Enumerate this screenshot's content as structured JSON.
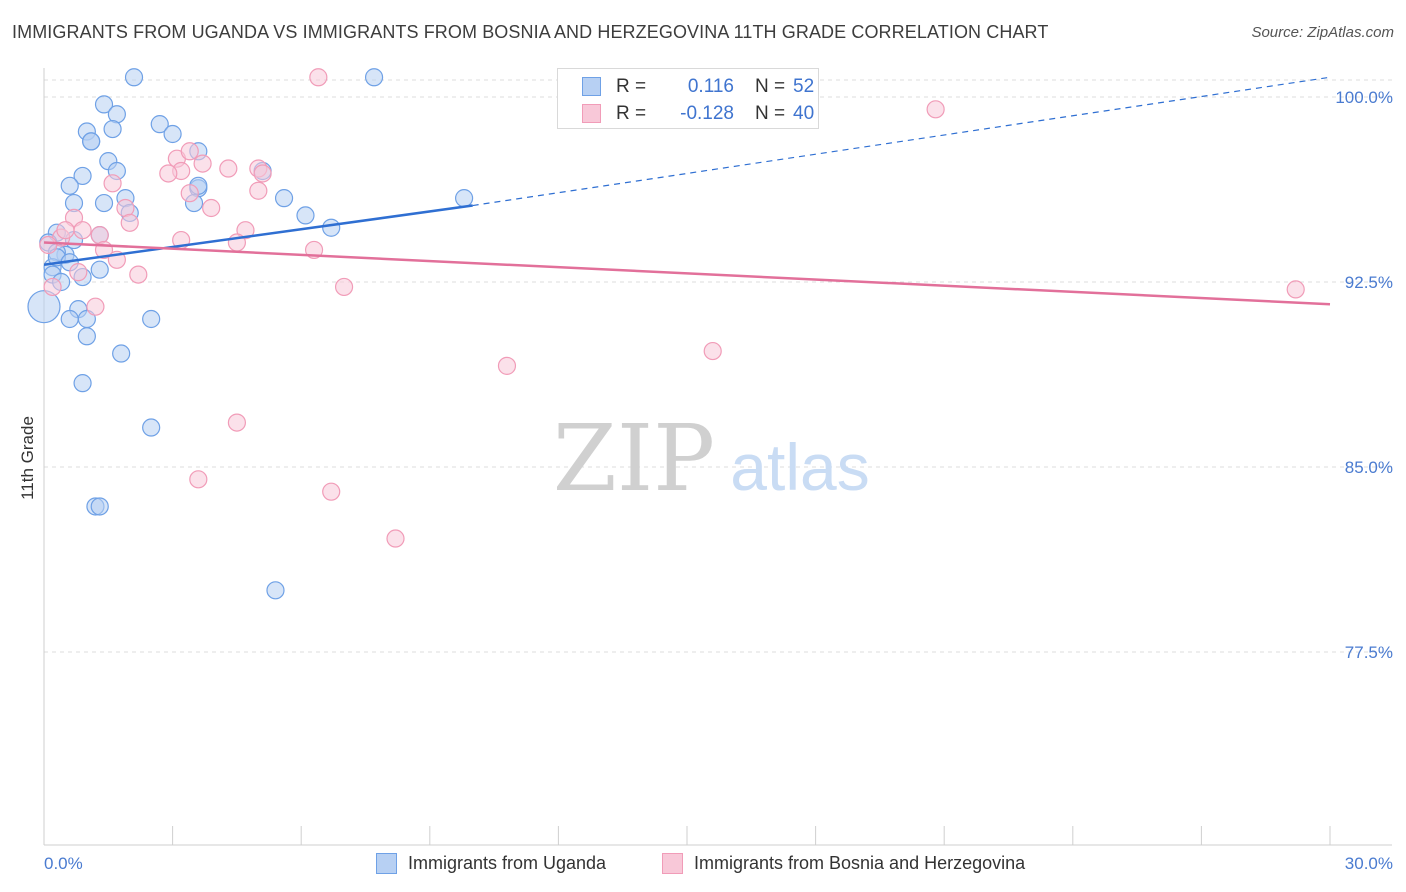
{
  "title": "IMMIGRANTS FROM UGANDA VS IMMIGRANTS FROM BOSNIA AND HERZEGOVINA 11TH GRADE CORRELATION CHART",
  "source": "Source: ZipAtlas.com",
  "watermark": {
    "zip": "ZIP",
    "atlas": "atlas"
  },
  "colors": {
    "uganda": "#6fa1e6",
    "uganda_fill": "#b7d0f3",
    "uganda_line": "#2f6fd2",
    "bosnia": "#f19cb8",
    "bosnia_fill": "#f8c8d8",
    "bosnia_line": "#e2709a",
    "tick_text": "#4a7bd0",
    "grid": "#dddddd"
  },
  "legend_top": {
    "rows": [
      {
        "r_label": "R =",
        "r_value": "0.116",
        "n_label": "N =",
        "n_value": "52"
      },
      {
        "r_label": "R =",
        "r_value": "-0.128",
        "n_label": "N =",
        "n_value": "40"
      }
    ]
  },
  "legend_bottom": {
    "items": [
      "Immigrants from Uganda",
      "Immigrants from Bosnia and Herzegovina"
    ]
  },
  "chart_data": {
    "type": "scatter",
    "title": "IMMIGRANTS FROM UGANDA VS IMMIGRANTS FROM BOSNIA AND HERZEGOVINA 11TH GRADE CORRELATION CHART",
    "xlabel": "",
    "ylabel": "11th Grade",
    "xlim": [
      0,
      30
    ],
    "ylim": [
      70,
      101.3
    ],
    "x_tick_labels": [
      {
        "value": 0,
        "label": "0.0%"
      },
      {
        "value": 30,
        "label": "30.0%"
      }
    ],
    "y_tick_labels": [
      {
        "value": 100,
        "label": "100.0%"
      },
      {
        "value": 92.5,
        "label": "92.5%"
      },
      {
        "value": 85,
        "label": "85.0%"
      },
      {
        "value": 77.5,
        "label": "77.5%"
      }
    ],
    "grid": true,
    "legend_position": "bottom",
    "series": [
      {
        "name": "Immigrants from Uganda",
        "r": 0.116,
        "n": 52,
        "trend": {
          "x0": 0,
          "y0": 93.2,
          "x1": 10,
          "y1": 95.6,
          "x_dashed_end": 30,
          "y_dashed_end": 100.8
        },
        "points": [
          {
            "x": 2.1,
            "y": 100.8
          },
          {
            "x": 7.7,
            "y": 100.8
          },
          {
            "x": 1.4,
            "y": 99.7
          },
          {
            "x": 1.7,
            "y": 99.3
          },
          {
            "x": 2.7,
            "y": 98.9
          },
          {
            "x": 1.0,
            "y": 98.6
          },
          {
            "x": 1.6,
            "y": 98.7
          },
          {
            "x": 3.0,
            "y": 98.5
          },
          {
            "x": 1.1,
            "y": 98.2
          },
          {
            "x": 1.1,
            "y": 98.2
          },
          {
            "x": 3.6,
            "y": 97.8
          },
          {
            "x": 1.5,
            "y": 97.4
          },
          {
            "x": 1.7,
            "y": 97.0
          },
          {
            "x": 5.1,
            "y": 97.0
          },
          {
            "x": 0.9,
            "y": 96.8
          },
          {
            "x": 0.6,
            "y": 96.4
          },
          {
            "x": 3.6,
            "y": 96.3
          },
          {
            "x": 3.6,
            "y": 96.4
          },
          {
            "x": 1.9,
            "y": 95.9
          },
          {
            "x": 5.6,
            "y": 95.9
          },
          {
            "x": 0.7,
            "y": 95.7
          },
          {
            "x": 1.4,
            "y": 95.7
          },
          {
            "x": 3.5,
            "y": 95.7
          },
          {
            "x": 9.8,
            "y": 95.9
          },
          {
            "x": 6.1,
            "y": 95.2
          },
          {
            "x": 2.0,
            "y": 95.3
          },
          {
            "x": 6.7,
            "y": 94.7
          },
          {
            "x": 0.3,
            "y": 94.5
          },
          {
            "x": 1.3,
            "y": 94.4
          },
          {
            "x": 0.7,
            "y": 94.2
          },
          {
            "x": 0.1,
            "y": 94.1
          },
          {
            "x": 0.5,
            "y": 93.6
          },
          {
            "x": 0.3,
            "y": 93.7
          },
          {
            "x": 0.2,
            "y": 93.1
          },
          {
            "x": 1.3,
            "y": 93.0
          },
          {
            "x": 0.2,
            "y": 92.8
          },
          {
            "x": 0.4,
            "y": 92.5
          },
          {
            "x": 0.0,
            "y": 91.5
          },
          {
            "x": 0.8,
            "y": 91.4
          },
          {
            "x": 0.6,
            "y": 91.0
          },
          {
            "x": 1.0,
            "y": 91.0
          },
          {
            "x": 2.5,
            "y": 91.0
          },
          {
            "x": 1.0,
            "y": 90.3
          },
          {
            "x": 1.8,
            "y": 89.6
          },
          {
            "x": 0.9,
            "y": 88.4
          },
          {
            "x": 2.5,
            "y": 86.6
          },
          {
            "x": 1.2,
            "y": 83.4
          },
          {
            "x": 1.3,
            "y": 83.4
          },
          {
            "x": 5.4,
            "y": 80.0
          },
          {
            "x": 0.3,
            "y": 93.5
          },
          {
            "x": 0.6,
            "y": 93.3
          },
          {
            "x": 0.9,
            "y": 92.7
          }
        ]
      },
      {
        "name": "Immigrants from Bosnia and Herzegovina",
        "r": -0.128,
        "n": 40,
        "trend": {
          "x0": 0,
          "y0": 94.1,
          "x1": 30,
          "y1": 91.6
        },
        "points": [
          {
            "x": 6.4,
            "y": 100.8
          },
          {
            "x": 20.8,
            "y": 99.5
          },
          {
            "x": 3.1,
            "y": 97.5
          },
          {
            "x": 3.2,
            "y": 97.0
          },
          {
            "x": 3.4,
            "y": 97.8
          },
          {
            "x": 3.7,
            "y": 97.3
          },
          {
            "x": 4.3,
            "y": 97.1
          },
          {
            "x": 5.0,
            "y": 97.1
          },
          {
            "x": 5.1,
            "y": 96.9
          },
          {
            "x": 1.6,
            "y": 96.5
          },
          {
            "x": 3.4,
            "y": 96.1
          },
          {
            "x": 3.9,
            "y": 95.5
          },
          {
            "x": 1.9,
            "y": 95.5
          },
          {
            "x": 0.7,
            "y": 95.1
          },
          {
            "x": 2.0,
            "y": 94.9
          },
          {
            "x": 4.7,
            "y": 94.6
          },
          {
            "x": 1.3,
            "y": 94.4
          },
          {
            "x": 0.4,
            "y": 94.3
          },
          {
            "x": 3.2,
            "y": 94.2
          },
          {
            "x": 0.1,
            "y": 94.0
          },
          {
            "x": 4.5,
            "y": 94.1
          },
          {
            "x": 1.4,
            "y": 93.8
          },
          {
            "x": 6.3,
            "y": 93.8
          },
          {
            "x": 1.7,
            "y": 93.4
          },
          {
            "x": 0.8,
            "y": 92.9
          },
          {
            "x": 2.2,
            "y": 92.8
          },
          {
            "x": 0.2,
            "y": 92.3
          },
          {
            "x": 7.0,
            "y": 92.3
          },
          {
            "x": 29.2,
            "y": 92.2
          },
          {
            "x": 1.2,
            "y": 91.5
          },
          {
            "x": 15.6,
            "y": 89.7
          },
          {
            "x": 10.8,
            "y": 89.1
          },
          {
            "x": 4.5,
            "y": 86.8
          },
          {
            "x": 3.6,
            "y": 84.5
          },
          {
            "x": 6.7,
            "y": 84.0
          },
          {
            "x": 8.2,
            "y": 82.1
          },
          {
            "x": 2.9,
            "y": 96.9
          },
          {
            "x": 5.0,
            "y": 96.2
          },
          {
            "x": 0.5,
            "y": 94.6
          },
          {
            "x": 0.9,
            "y": 94.6
          }
        ]
      }
    ]
  }
}
